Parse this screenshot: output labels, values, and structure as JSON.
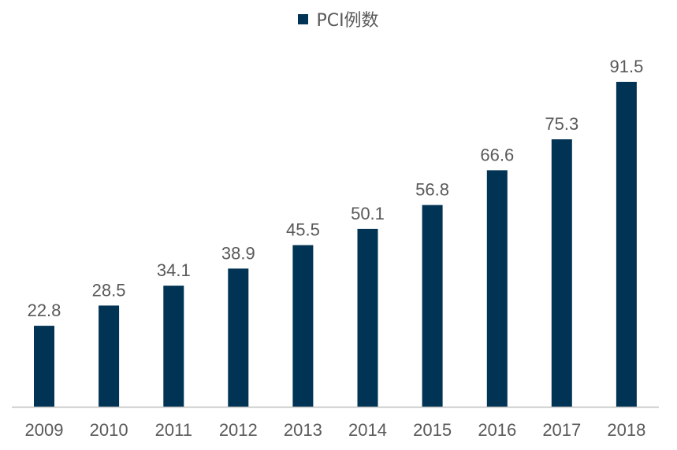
{
  "chart_data": {
    "type": "bar",
    "title": "",
    "xlabel": "",
    "ylabel": "",
    "categories": [
      "2009",
      "2010",
      "2011",
      "2012",
      "2013",
      "2014",
      "2015",
      "2016",
      "2017",
      "2018"
    ],
    "series": [
      {
        "name": "PCI例数",
        "values": [
          22.8,
          28.5,
          34.1,
          38.9,
          45.5,
          50.1,
          56.8,
          66.6,
          75.3,
          91.5
        ],
        "color": "#003354"
      }
    ],
    "ylim": [
      0,
      100
    ],
    "grid": false,
    "legend": "top-center",
    "data_labels": true
  },
  "colors": {
    "bar": "#003354",
    "axis": "#bfbfbf",
    "text": "#595959"
  }
}
